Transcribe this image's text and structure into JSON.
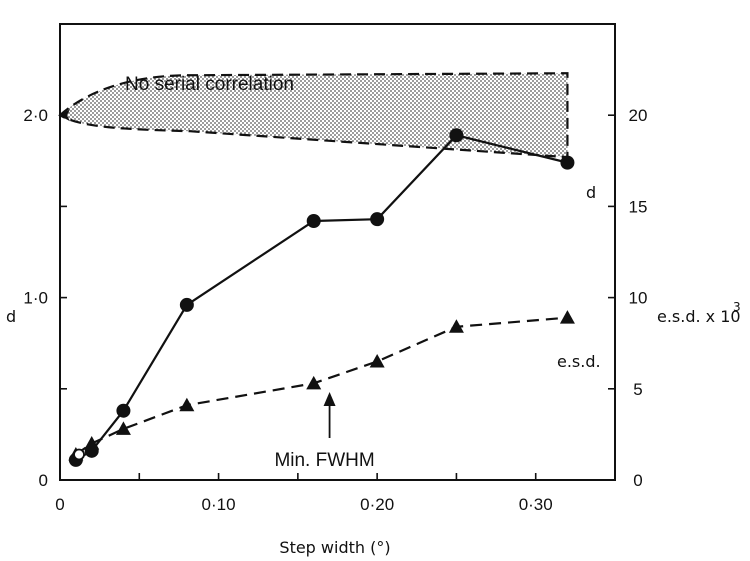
{
  "chart_data": {
    "type": "line",
    "title": "",
    "xlabel": "Step width (°)",
    "ylabel_left": "d",
    "ylabel_right": "e.s.d. x 10",
    "ylabel_right_exp": "3",
    "xlim": [
      0,
      0.35
    ],
    "ylim_left": [
      0,
      2.5
    ],
    "ylim_right": [
      0,
      25
    ],
    "x_tick_labels": [
      "0",
      "0·10",
      "0·20",
      "0·30"
    ],
    "y_left_tick_labels": [
      "0",
      "1·0",
      "2·0"
    ],
    "y_right_tick_labels": [
      "0",
      "5",
      "10",
      "15",
      "20"
    ],
    "series": [
      {
        "name": "d",
        "axis": "left",
        "marker": "circle",
        "line": "solid",
        "x": [
          0.01,
          0.02,
          0.04,
          0.08,
          0.16,
          0.2,
          0.25,
          0.32
        ],
        "values": [
          0.11,
          0.16,
          0.38,
          0.96,
          1.42,
          1.43,
          1.89,
          1.74
        ]
      },
      {
        "name": "e.s.d.",
        "axis": "right",
        "marker": "triangle",
        "line": "dashed",
        "x": [
          0.01,
          0.02,
          0.04,
          0.08,
          0.16,
          0.2,
          0.25,
          0.32
        ],
        "values": [
          1.4,
          2.0,
          2.8,
          4.1,
          5.3,
          6.5,
          8.4,
          8.9
        ]
      }
    ],
    "open_point": {
      "x": 0.012,
      "y": 0.14
    },
    "region": {
      "label": "No serial correlation",
      "vertex": {
        "x": 0.0,
        "y": 2.0
      },
      "end_x": 0.32,
      "upper_end_y": 2.23,
      "lower_end_y": 1.77
    },
    "annotation": {
      "label": "Min. FWHM",
      "x": 0.17
    },
    "series_labels": {
      "d": "d",
      "esd": "e.s.d."
    },
    "colors": {
      "ink": "#111111",
      "fill": "#d8d8d8"
    }
  }
}
